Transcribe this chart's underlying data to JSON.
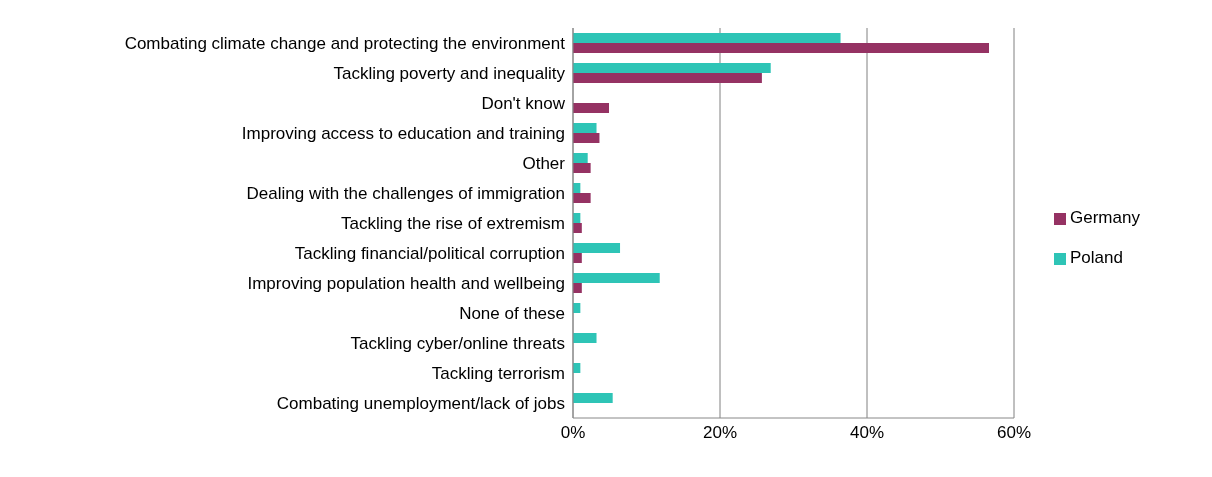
{
  "chart_data": {
    "type": "bar",
    "orientation": "horizontal",
    "categories": [
      "Combating climate change and protecting the environment",
      "Tackling poverty and inequality",
      "Don't know",
      "Improving access to education and training",
      "Other",
      "Dealing with the challenges of immigration",
      "Tackling the rise of extremism",
      "Tackling financial/political corruption",
      "Improving population health and wellbeing",
      "None of these",
      "Tackling cyber/online threats ",
      "Tackling terrorism",
      "Combating unemployment/lack of jobs"
    ],
    "series": [
      {
        "name": "Poland",
        "color": "#2ec4b6",
        "values": [
          36.4,
          26.9,
          null,
          3.2,
          2.0,
          1.0,
          1.0,
          6.4,
          11.8,
          1.0,
          3.2,
          1.0,
          5.4
        ]
      },
      {
        "name": "Germany",
        "color": "#953263",
        "values": [
          56.6,
          25.7,
          4.9,
          3.6,
          2.4,
          2.4,
          1.2,
          1.2,
          1.2,
          null,
          null,
          null,
          null
        ]
      }
    ],
    "xlim": [
      0,
      60
    ],
    "xticks": [
      {
        "value": 0,
        "label": "0%"
      },
      {
        "value": 20,
        "label": "20%"
      },
      {
        "value": 40,
        "label": "40%"
      },
      {
        "value": 60,
        "label": "60%"
      }
    ],
    "grid": "x",
    "legend": "right"
  }
}
